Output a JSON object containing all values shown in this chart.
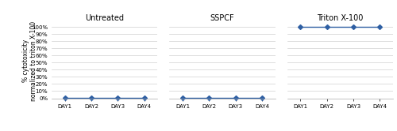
{
  "subplots": [
    "Untreated",
    "SSPCF",
    "Triton X-100"
  ],
  "x_labels": [
    "DAY1",
    "DAY2",
    "DAY3",
    "DAY4"
  ],
  "x_values": [
    1,
    2,
    3,
    4
  ],
  "series": {
    "Untreated": [
      0.5,
      0.5,
      0.5,
      0.5
    ],
    "SSPCF": [
      0.5,
      0.5,
      0.5,
      0.5
    ],
    "Triton X-100": [
      100,
      100,
      100,
      100
    ]
  },
  "ylim": [
    0,
    105
  ],
  "yticks": [
    0,
    10,
    20,
    30,
    40,
    50,
    60,
    70,
    80,
    90,
    100
  ],
  "line_color": "#2E5FA3",
  "marker": "D",
  "markersize": 3,
  "linewidth": 1.0,
  "ylabel_line1": "% cytotoxicity",
  "ylabel_line2": "normalized to triton X-100",
  "background_color": "#ffffff",
  "grid_color": "#d0d0d0",
  "title_fontsize": 7,
  "tick_fontsize": 5,
  "ylabel_fontsize": 5.5
}
